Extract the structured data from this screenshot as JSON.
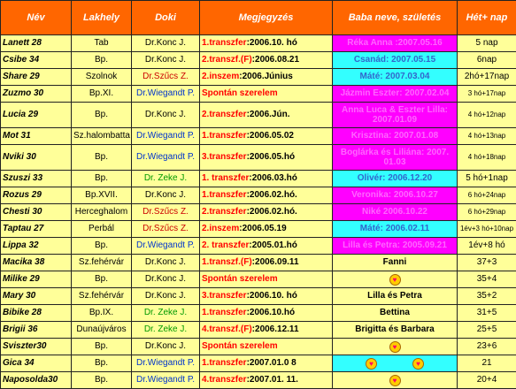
{
  "headers": [
    "Név",
    "Lakhely",
    "Doki",
    "Megjegyzés",
    "Baba neve, születés",
    "Hét+ nap"
  ],
  "rows": [
    {
      "name": "Lanett 28",
      "place": "Tab",
      "doc": "Dr.Konc J.",
      "doc_color": "black",
      "note_a": "1.transzfer",
      "note_b": ":2006.10. hó",
      "note_style": "a-red",
      "baby": "Réka Anna :2007.05.16",
      "baby_bg": "magenta",
      "baby_ink": "magenta-ink",
      "weeks": "5 nap"
    },
    {
      "name": "Csibe 34",
      "place": "Bp.",
      "doc": "Dr.Konc J.",
      "doc_color": "black",
      "note_a": "2.transzf.(F)",
      "note_b": ":2006.08.21",
      "note_style": "a-red",
      "baby": "Csanád: 2007.05.15",
      "baby_bg": "cyan",
      "baby_ink": "blue-ink",
      "weeks": "6nap"
    },
    {
      "name": "Share 29",
      "place": "Szolnok",
      "doc": "Dr.Szűcs Z.",
      "doc_color": "red",
      "note_a": "2.inszem",
      "note_b": ":2006.Június",
      "note_style": "a-red",
      "baby": "Máté: 2007.03.04",
      "baby_bg": "cyan",
      "baby_ink": "blue-ink",
      "weeks": "2hó+17nap"
    },
    {
      "name": "Zuzmo 30",
      "place": "Bp.XI.",
      "doc": "Dr.Wiegandt P.",
      "doc_color": "blue",
      "note_a": "Spontán szerelem",
      "note_b": "",
      "note_style": "a-red",
      "baby": "Jázmin Eszter: 2007.02.04",
      "baby_bg": "magenta",
      "baby_ink": "magenta-ink",
      "weeks": "3 hó+17nap"
    },
    {
      "name": "Lucia 29",
      "place": "Bp.",
      "doc": "Dr.Konc J.",
      "doc_color": "black",
      "note_a": "2.transzfer",
      "note_b": ":2006.Jún.",
      "note_style": "a-red",
      "baby": "Anna Luca & Eszter Lilla: 2007.01.09",
      "baby_bg": "magenta",
      "baby_ink": "magenta-ink",
      "weeks": "4 hó+12nap"
    },
    {
      "name": "Mot 31",
      "place": "Sz.halombatta",
      "doc": "Dr.Wiegandt P.",
      "doc_color": "blue",
      "note_a": "1.transzfer",
      "note_b": ":2006.05.02",
      "note_style": "a-red",
      "baby": "Krisztina: 2007.01.08",
      "baby_bg": "magenta",
      "baby_ink": "magenta-ink",
      "weeks": "4 hó+13nap"
    },
    {
      "name": "Nviki 30",
      "place": "Bp.",
      "doc": "Dr.Wiegandt P.",
      "doc_color": "blue",
      "note_a": "3.transzfer",
      "note_b": ":2006.05.hó",
      "note_style": "a-red",
      "baby": "Boglárka és Liliána: 2007. 01.03",
      "baby_bg": "magenta",
      "baby_ink": "magenta-ink",
      "weeks": "4 hó+18nap"
    },
    {
      "name": "Szuszi 33",
      "place": "Bp.",
      "doc": "Dr. Zeke J.",
      "doc_color": "green",
      "note_a": "1. transzfer",
      "note_b": ":2006.03.hó",
      "note_style": "a-red",
      "baby": "Olivér: 2006.12.20",
      "baby_bg": "cyan",
      "baby_ink": "blue-ink",
      "weeks": "5 hó+1nap"
    },
    {
      "name": "Rozus 29",
      "place": "Bp.XVII.",
      "doc": "Dr.Konc J.",
      "doc_color": "black",
      "note_a": "1.transzfer",
      "note_b": ":2006.02.hó.",
      "note_style": "a-red",
      "baby": "Veronika: 2006.10.27",
      "baby_bg": "magenta",
      "baby_ink": "magenta-ink",
      "weeks": "6 hó+24nap"
    },
    {
      "name": "Chesti 30",
      "place": "Herceghalom",
      "doc": "Dr.Szűcs Z.",
      "doc_color": "red",
      "note_a": "2.transzfer",
      "note_b": ":2006.02.hó.",
      "note_style": "a-red",
      "baby": "Niké 2006.10.22",
      "baby_bg": "magenta",
      "baby_ink": "magenta-ink",
      "weeks": "6 hó+29nap"
    },
    {
      "name": "Taptau 27",
      "place": "Perbál",
      "doc": "Dr.Szűcs Z.",
      "doc_color": "red",
      "note_a": "2.inszem",
      "note_b": ":2006.05.19",
      "note_style": "a-red",
      "baby": "Máté: 2006.02.11",
      "baby_bg": "cyan",
      "baby_ink": "blue-ink",
      "weeks": "1év+3 hó+10nap"
    },
    {
      "name": "Lippa 32",
      "place": "Bp.",
      "doc": "Dr.Wiegandt P.",
      "doc_color": "blue",
      "note_a": "2. transzfer",
      "note_b": ":2005.01.hó",
      "note_style": "a-red",
      "baby": "Lilla és Petra: 2005.09.21",
      "baby_bg": "magenta",
      "baby_ink": "magenta-ink",
      "weeks": "1év+8 hó"
    },
    {
      "name": "Macika 38",
      "place": "Sz.fehérvár",
      "doc": "Dr.Konc J.",
      "doc_color": "black",
      "note_a": "1.transzf.(F)",
      "note_b": ":2006.09.11",
      "note_style": "a-red",
      "baby": "Fanni",
      "baby_bg": "cream",
      "baby_ink": "black-ink",
      "weeks": "37+3"
    },
    {
      "name": "Milike 29",
      "place": "Bp.",
      "doc": "Dr.Konc J.",
      "doc_color": "black",
      "note_a": "Spontán szerelem",
      "note_b": "",
      "note_style": "a-red",
      "baby": "",
      "baby_bg": "cream",
      "baby_ink": "black-ink",
      "baby_heart": true,
      "weeks": "35+4"
    },
    {
      "name": "Mary 30",
      "place": "Sz.fehérvár",
      "doc": "Dr.Konc J.",
      "doc_color": "black",
      "note_a": "3.transzfer",
      "note_b": ":2006.10. hó",
      "note_style": "a-red",
      "baby": "Lilla és Petra",
      "baby_bg": "cream",
      "baby_ink": "black-ink",
      "weeks": "35+2"
    },
    {
      "name": "Bibike 28",
      "place": "Bp.IX.",
      "doc": "Dr. Zeke J.",
      "doc_color": "green",
      "note_a": "1.transzfer",
      "note_b": ":2006.10.hó",
      "note_style": "a-red",
      "baby": "Bettina",
      "baby_bg": "cream",
      "baby_ink": "black-ink",
      "weeks": "31+5"
    },
    {
      "name": "Brigii 36",
      "place": "Dunaújváros",
      "doc": "Dr. Zeke J.",
      "doc_color": "green",
      "note_a": "4.transzf.(F)",
      "note_b": ":2006.12.11",
      "note_style": "a-red",
      "baby": "Brigitta és Barbara",
      "baby_bg": "cream",
      "baby_ink": "black-ink",
      "weeks": "25+5"
    },
    {
      "name": "Sviszter30",
      "place": "Bp.",
      "doc": "Dr.Konc J.",
      "doc_color": "black",
      "note_a": "Spontán szerelem",
      "note_b": "",
      "note_style": "a-red",
      "baby": "",
      "baby_bg": "cream",
      "baby_ink": "black-ink",
      "baby_heart": true,
      "weeks": "23+6"
    },
    {
      "name": "Gica 34",
      "place": "Bp.",
      "doc": "Dr.Wiegandt P.",
      "doc_color": "blue",
      "note_a": "1.transzfer",
      "note_b": ":2007.01.0 8",
      "note_style": "a-red",
      "baby": "",
      "baby_bg": "cyan",
      "baby_ink": "black-ink",
      "baby_heart": true,
      "baby_heart2": true,
      "weeks": "21"
    },
    {
      "name": "Naposolda30",
      "place": "Bp.",
      "doc": "Dr.Wiegandt P.",
      "doc_color": "blue",
      "note_a": "4.transzfer",
      "note_b": ":2007.01. 11.",
      "note_style": "a-red",
      "baby": "",
      "baby_bg": "cream",
      "baby_ink": "black-ink",
      "baby_heart": true,
      "weeks": "20+4"
    }
  ]
}
